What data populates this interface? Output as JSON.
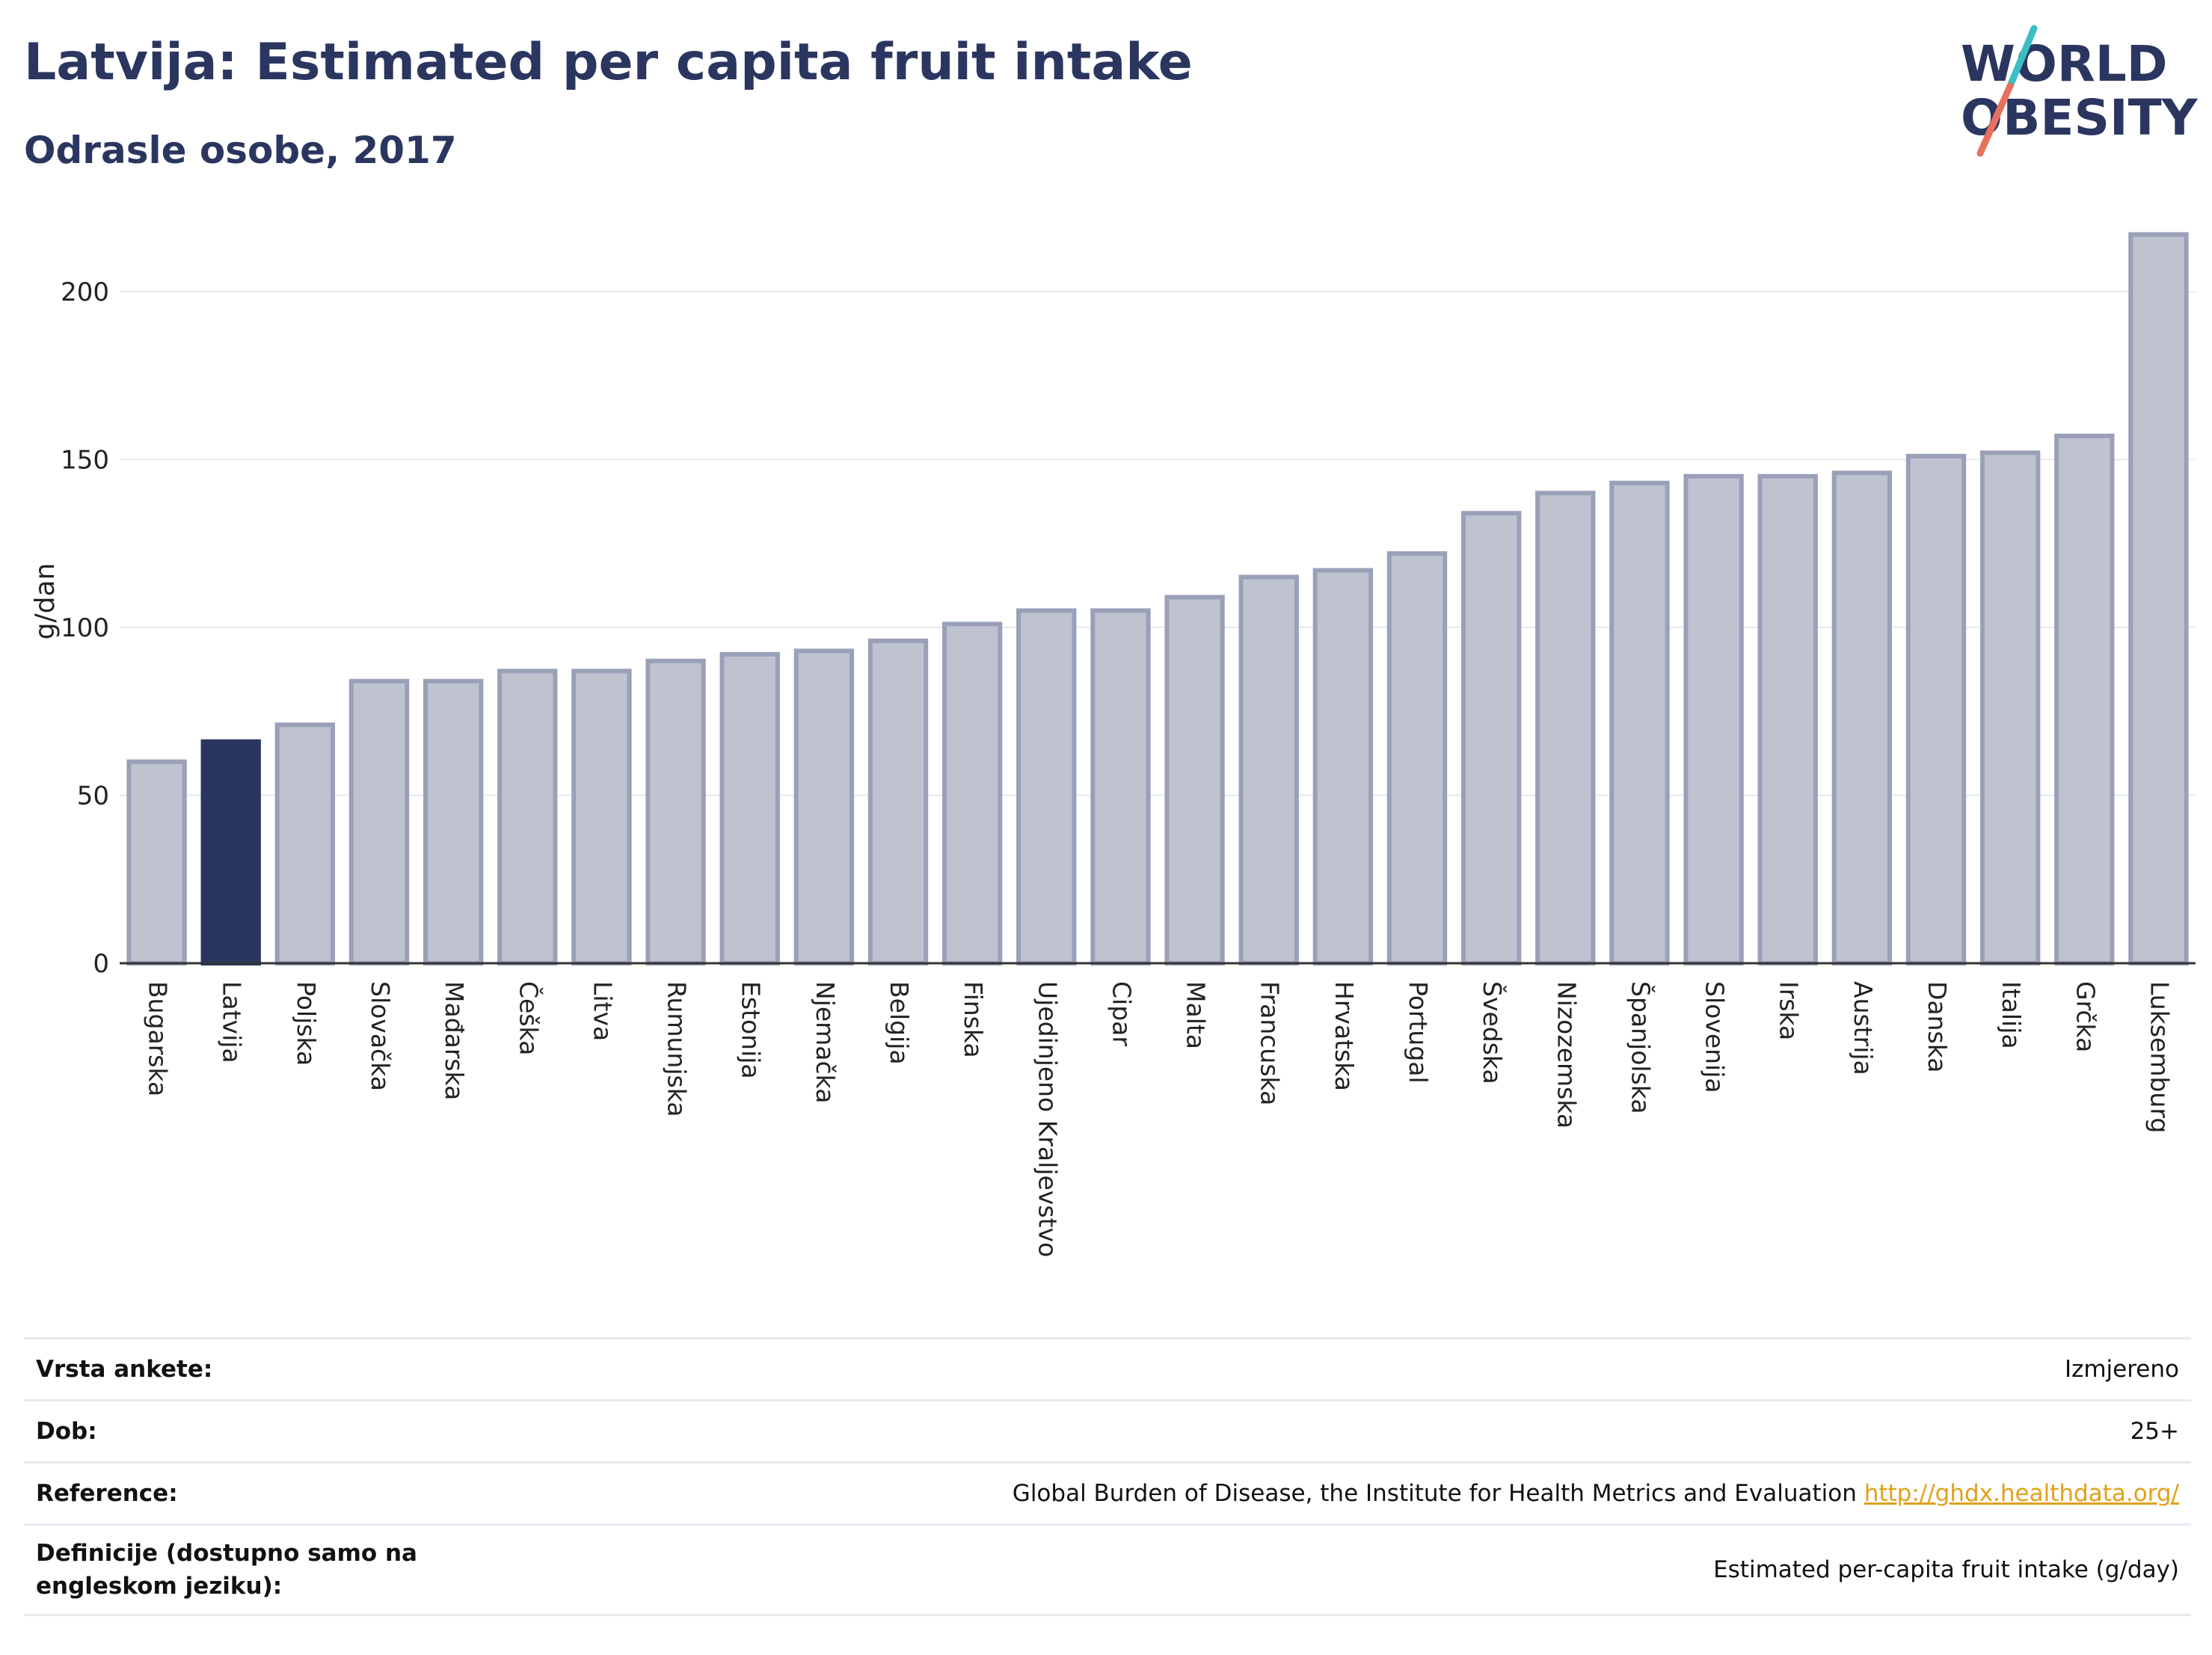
{
  "header": {
    "title": "Latvija: Estimated per capita fruit intake",
    "subtitle": "Odrasle osobe, 2017"
  },
  "logo": {
    "line1": "WORLD",
    "line2": "OBESITY",
    "text_color": "#2b3660",
    "slash_colors": [
      "#3bbfc4",
      "#e8705e"
    ]
  },
  "colors": {
    "highlight_bar": "#2b3660",
    "other_bar_fill": "#bfc3d0",
    "other_bar_stroke": "#9aa0b8",
    "grid": "#e6e9ee",
    "axis": "#333333"
  },
  "chart_data": {
    "type": "bar",
    "title": "Latvija: Estimated per capita fruit intake",
    "subtitle": "Odrasle osobe, 2017",
    "xlabel": "",
    "ylabel": "g/dan",
    "ylim": [
      0,
      220
    ],
    "yticks": [
      0,
      50,
      100,
      150,
      200
    ],
    "grid": true,
    "highlight": "Latvija",
    "categories": [
      "Bugarska",
      "Latvija",
      "Poljska",
      "Slovačka",
      "Mađarska",
      "Češka",
      "Litva",
      "Rumunjska",
      "Estonija",
      "Njemačka",
      "Belgija",
      "Finska",
      "Ujedinjeno Kraljevstvo",
      "Cipar",
      "Malta",
      "Francuska",
      "Hrvatska",
      "Portugal",
      "Švedska",
      "Nizozemska",
      "Španjolska",
      "Slovenija",
      "Irska",
      "Austrija",
      "Danska",
      "Italija",
      "Grčka",
      "Luksemburg"
    ],
    "values": [
      60,
      66,
      71,
      84,
      84,
      87,
      87,
      90,
      92,
      93,
      96,
      101,
      105,
      105,
      109,
      115,
      117,
      122,
      134,
      140,
      143,
      145,
      145,
      146,
      151,
      152,
      157,
      217
    ]
  },
  "info_table": [
    {
      "label": "Vrsta ankete:",
      "value": "Izmjereno"
    },
    {
      "label": "Dob:",
      "value": "25+"
    },
    {
      "label": "Reference:",
      "value": "Global Burden of Disease, the Institute for Health Metrics and Evaluation",
      "link": "http://ghdx.healthdata.org/"
    },
    {
      "label": "Definicije (dostupno samo na engleskom jeziku):",
      "value": "Estimated per-capita fruit intake (g/day)"
    }
  ]
}
